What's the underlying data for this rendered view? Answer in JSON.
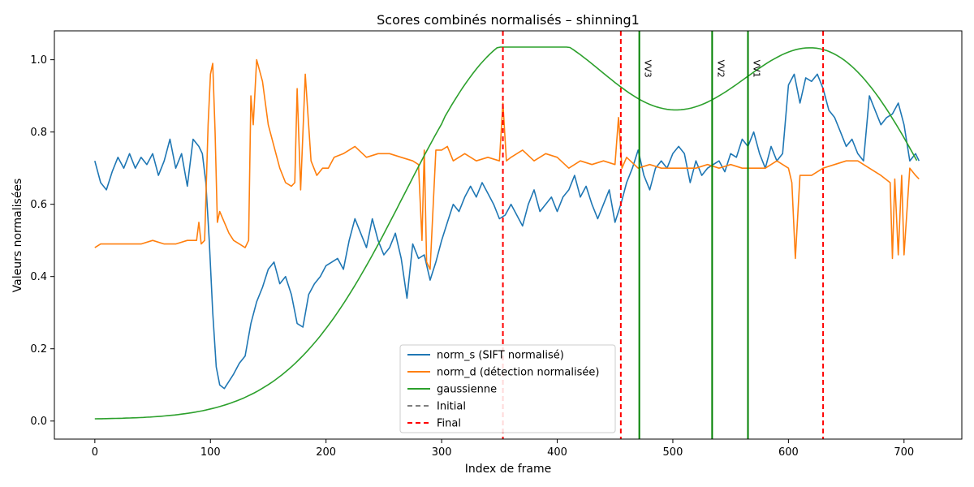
{
  "chart_data": {
    "type": "line",
    "title": "Scores combinés normalisés – shinning1",
    "xlabel": "Index de frame",
    "ylabel": "Valeurs normalisées",
    "xlim": [
      -35,
      750
    ],
    "ylim": [
      -0.05,
      1.08
    ],
    "xticks": [
      0,
      100,
      200,
      300,
      400,
      500,
      600,
      700
    ],
    "yticks": [
      0.0,
      0.2,
      0.4,
      0.6,
      0.8,
      1.0
    ],
    "xtick_labels": [
      "0",
      "100",
      "200",
      "300",
      "400",
      "500",
      "600",
      "700"
    ],
    "ytick_labels": [
      "0.0",
      "0.2",
      "0.4",
      "0.6",
      "0.8",
      "1.0"
    ],
    "grid": false,
    "legend_position": "bottom-center",
    "series": [
      {
        "name": "norm_s (SIFT normalisé)",
        "color": "#1f77b4",
        "style": "solid",
        "x": [
          0,
          5,
          10,
          15,
          20,
          25,
          30,
          35,
          40,
          45,
          50,
          55,
          60,
          65,
          70,
          75,
          80,
          85,
          90,
          93,
          96,
          99,
          102,
          105,
          108,
          112,
          116,
          120,
          125,
          130,
          135,
          140,
          145,
          150,
          155,
          160,
          165,
          170,
          175,
          180,
          185,
          190,
          195,
          200,
          205,
          210,
          215,
          220,
          225,
          230,
          235,
          240,
          245,
          250,
          255,
          260,
          265,
          270,
          275,
          280,
          285,
          290,
          295,
          300,
          305,
          310,
          315,
          320,
          325,
          330,
          335,
          340,
          345,
          350,
          355,
          360,
          365,
          370,
          375,
          380,
          385,
          390,
          395,
          400,
          405,
          410,
          415,
          420,
          425,
          430,
          435,
          440,
          445,
          450,
          455,
          460,
          465,
          470,
          475,
          480,
          485,
          490,
          495,
          500,
          505,
          510,
          515,
          520,
          525,
          530,
          535,
          540,
          545,
          550,
          555,
          560,
          565,
          570,
          575,
          580,
          585,
          590,
          595,
          600,
          605,
          610,
          615,
          620,
          625,
          630,
          635,
          640,
          645,
          650,
          655,
          660,
          665,
          670,
          675,
          680,
          685,
          690,
          695,
          700,
          705,
          710,
          713
        ],
        "y": [
          0.72,
          0.66,
          0.64,
          0.69,
          0.73,
          0.7,
          0.74,
          0.7,
          0.73,
          0.71,
          0.74,
          0.68,
          0.72,
          0.78,
          0.7,
          0.74,
          0.65,
          0.78,
          0.76,
          0.74,
          0.66,
          0.5,
          0.3,
          0.15,
          0.1,
          0.09,
          0.11,
          0.13,
          0.16,
          0.18,
          0.27,
          0.33,
          0.37,
          0.42,
          0.44,
          0.38,
          0.4,
          0.35,
          0.27,
          0.26,
          0.35,
          0.38,
          0.4,
          0.43,
          0.44,
          0.45,
          0.42,
          0.5,
          0.56,
          0.52,
          0.48,
          0.56,
          0.5,
          0.46,
          0.48,
          0.52,
          0.45,
          0.34,
          0.49,
          0.45,
          0.46,
          0.39,
          0.44,
          0.5,
          0.55,
          0.6,
          0.58,
          0.62,
          0.65,
          0.62,
          0.66,
          0.63,
          0.6,
          0.56,
          0.57,
          0.6,
          0.57,
          0.54,
          0.6,
          0.64,
          0.58,
          0.6,
          0.62,
          0.58,
          0.62,
          0.64,
          0.68,
          0.62,
          0.65,
          0.6,
          0.56,
          0.6,
          0.64,
          0.55,
          0.6,
          0.66,
          0.7,
          0.75,
          0.68,
          0.64,
          0.7,
          0.72,
          0.7,
          0.74,
          0.76,
          0.74,
          0.66,
          0.72,
          0.68,
          0.7,
          0.71,
          0.72,
          0.69,
          0.74,
          0.73,
          0.78,
          0.76,
          0.8,
          0.74,
          0.7,
          0.76,
          0.72,
          0.74,
          0.93,
          0.96,
          0.88,
          0.95,
          0.94,
          0.96,
          0.92,
          0.86,
          0.84,
          0.8,
          0.76,
          0.78,
          0.74,
          0.72,
          0.9,
          0.86,
          0.82,
          0.84,
          0.85,
          0.88,
          0.82,
          0.72,
          0.74,
          0.72
        ]
      },
      {
        "name": "norm_d (détection normalisée)",
        "color": "#ff7f0e",
        "style": "solid",
        "x": [
          0,
          5,
          10,
          20,
          30,
          40,
          50,
          60,
          70,
          80,
          85,
          88,
          90,
          92,
          95,
          98,
          100,
          102,
          104,
          106,
          108,
          112,
          116,
          120,
          125,
          130,
          133,
          135,
          137,
          140,
          145,
          150,
          155,
          160,
          165,
          170,
          173,
          175,
          178,
          182,
          187,
          192,
          197,
          202,
          207,
          215,
          225,
          235,
          245,
          255,
          265,
          275,
          280,
          283,
          285,
          287,
          290,
          295,
          300,
          305,
          310,
          320,
          330,
          340,
          350,
          353,
          356,
          360,
          370,
          380,
          390,
          400,
          410,
          420,
          430,
          440,
          450,
          453,
          456,
          460,
          470,
          480,
          490,
          500,
          510,
          520,
          530,
          540,
          550,
          560,
          570,
          580,
          590,
          600,
          603,
          606,
          610,
          620,
          630,
          640,
          650,
          660,
          670,
          680,
          688,
          690,
          692,
          695,
          698,
          700,
          705,
          710,
          713
        ],
        "y": [
          0.48,
          0.49,
          0.49,
          0.49,
          0.49,
          0.49,
          0.5,
          0.49,
          0.49,
          0.5,
          0.5,
          0.5,
          0.55,
          0.49,
          0.5,
          0.82,
          0.96,
          0.99,
          0.8,
          0.55,
          0.58,
          0.55,
          0.52,
          0.5,
          0.49,
          0.48,
          0.5,
          0.9,
          0.82,
          1.0,
          0.94,
          0.82,
          0.76,
          0.7,
          0.66,
          0.65,
          0.66,
          0.92,
          0.64,
          0.96,
          0.72,
          0.68,
          0.7,
          0.7,
          0.73,
          0.74,
          0.76,
          0.73,
          0.74,
          0.74,
          0.73,
          0.72,
          0.71,
          0.5,
          0.75,
          0.44,
          0.42,
          0.75,
          0.75,
          0.76,
          0.72,
          0.74,
          0.72,
          0.73,
          0.72,
          0.88,
          0.72,
          0.73,
          0.75,
          0.72,
          0.74,
          0.73,
          0.7,
          0.72,
          0.71,
          0.72,
          0.71,
          0.84,
          0.7,
          0.73,
          0.7,
          0.71,
          0.7,
          0.7,
          0.7,
          0.7,
          0.71,
          0.7,
          0.71,
          0.7,
          0.7,
          0.7,
          0.72,
          0.7,
          0.66,
          0.45,
          0.68,
          0.68,
          0.7,
          0.71,
          0.72,
          0.72,
          0.7,
          0.68,
          0.66,
          0.45,
          0.67,
          0.46,
          0.68,
          0.46,
          0.7,
          0.68,
          0.67
        ]
      },
      {
        "name": "gaussienne",
        "color": "#2ca02c",
        "style": "solid",
        "curve": "sum-of-gaussians",
        "centers": [
          368,
          630
        ],
        "sigma": 100,
        "amplitudes": [
          1.03,
          0.99
        ],
        "x_range": [
          0,
          713
        ]
      },
      {
        "name": "Initial",
        "color": "#808080",
        "style": "dashed",
        "x": [],
        "y": []
      },
      {
        "name": "Final",
        "color": "#ff0000",
        "style": "dashed",
        "vlines": [
          353,
          455,
          630
        ]
      }
    ],
    "green_vlines": [
      {
        "x": 471,
        "label": "VV3"
      },
      {
        "x": 534,
        "label": "VV2"
      },
      {
        "x": 565,
        "label": "VV1"
      }
    ]
  }
}
